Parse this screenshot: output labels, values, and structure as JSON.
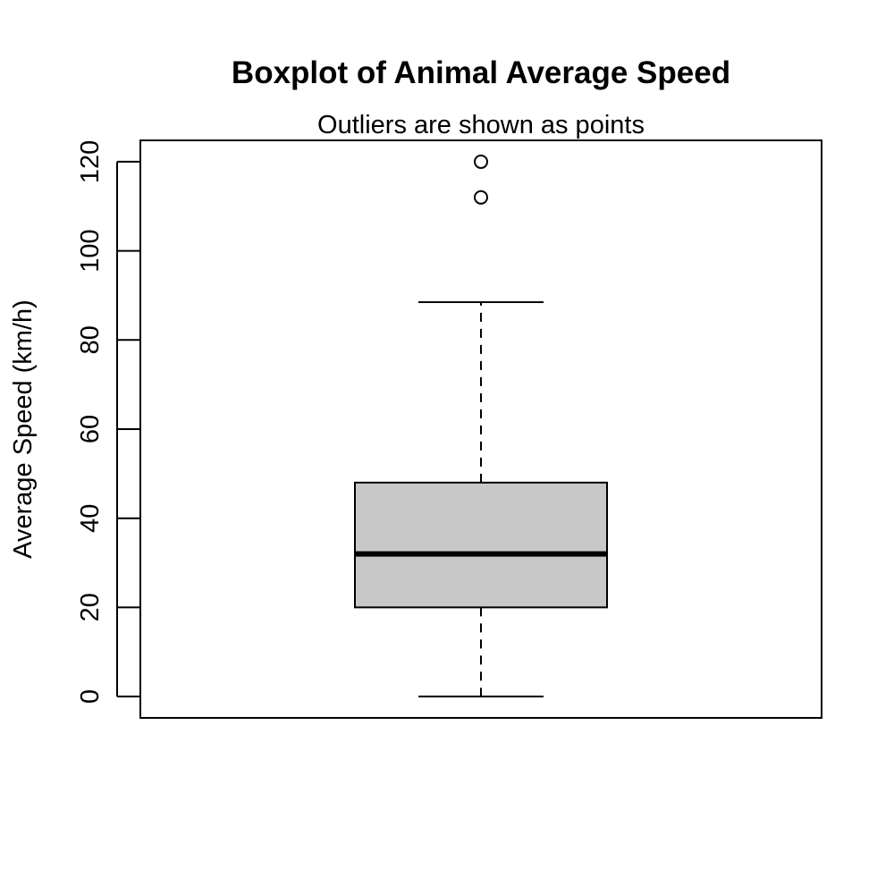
{
  "chart_data": {
    "type": "boxplot",
    "title": "Boxplot of Animal Average Speed",
    "subtitle": "Outliers are shown as points",
    "xlabel": "",
    "ylabel": "Average Speed (km/h)",
    "ylim": [
      -4.8,
      124.8
    ],
    "yticks": [
      0,
      20,
      40,
      60,
      80,
      100,
      120
    ],
    "box": {
      "whisker_low": 0,
      "q1": 20,
      "median": 32,
      "q3": 48,
      "whisker_high": 88.5
    },
    "outliers": [
      112,
      120
    ],
    "grid": false,
    "box_fill": "#c8c8c8",
    "line_color": "#000000"
  }
}
